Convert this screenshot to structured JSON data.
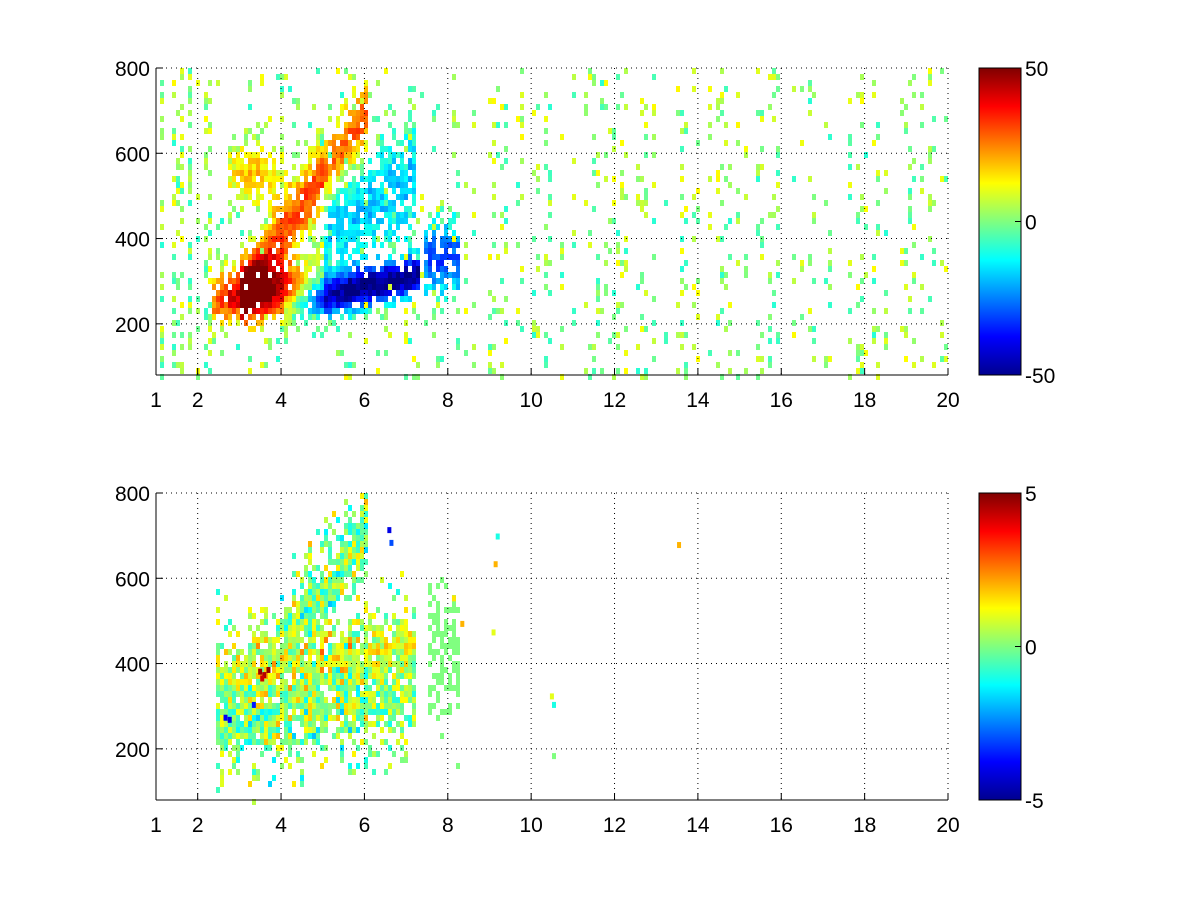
{
  "chart_data": [
    {
      "type": "heatmap",
      "title": "",
      "xlabel": "",
      "ylabel": "",
      "xlim": [
        1,
        20
      ],
      "ylim": [
        80,
        800
      ],
      "x_ticks": [
        1,
        2,
        4,
        6,
        8,
        10,
        12,
        14,
        16,
        18,
        20
      ],
      "x_tick_labels": [
        "1",
        "2",
        "4",
        "6",
        "8",
        "10",
        "12",
        "14",
        "16",
        "18",
        "20"
      ],
      "y_ticks": [
        200,
        400,
        600,
        800
      ],
      "y_tick_labels": [
        "200",
        "400",
        "600",
        "800"
      ],
      "grid": true,
      "colormap": "jet",
      "colorbar": {
        "min": -50,
        "max": 50,
        "ticks": [
          50,
          0,
          -50
        ],
        "tick_labels": [
          "50",
          "0",
          "-50"
        ]
      },
      "features": [
        {
          "name": "positive band",
          "x_range": [
            2.4,
            5.0
          ],
          "y_center": 275,
          "value": 45
        },
        {
          "name": "negative band",
          "x_range": [
            4.2,
            7.2
          ],
          "y_center": 290,
          "value": -45
        },
        {
          "name": "upper positive band",
          "x_range": [
            2.8,
            5.8
          ],
          "y_center": 600,
          "value": 25
        },
        {
          "name": "sparse scatter",
          "x_range": [
            8,
            20
          ],
          "value": 0
        }
      ]
    },
    {
      "type": "heatmap",
      "title": "",
      "xlabel": "",
      "ylabel": "",
      "xlim": [
        1,
        20
      ],
      "ylim": [
        80,
        800
      ],
      "x_ticks": [
        1,
        2,
        4,
        6,
        8,
        10,
        12,
        14,
        16,
        18,
        20
      ],
      "x_tick_labels": [
        "1",
        "2",
        "4",
        "6",
        "8",
        "10",
        "12",
        "14",
        "16",
        "18",
        "20"
      ],
      "y_ticks": [
        200,
        400,
        600,
        800
      ],
      "y_tick_labels": [
        "200",
        "400",
        "600",
        "800"
      ],
      "grid": true,
      "colormap": "jet",
      "colorbar": {
        "min": -5,
        "max": 5,
        "ticks": [
          5,
          0,
          -5
        ],
        "tick_labels": [
          "5",
          "0",
          "-5"
        ]
      },
      "features": [
        {
          "name": "main cloud",
          "x_range": [
            2.4,
            7.2
          ],
          "y_center": 300,
          "value": 0
        },
        {
          "name": "red spots",
          "x": 3.5,
          "y": 385,
          "value": 4.5
        },
        {
          "name": "blue spots",
          "x": 2.7,
          "y": 275,
          "value": -4
        },
        {
          "name": "isolated points",
          "x_range": [
            8,
            13.5
          ],
          "value": 1
        }
      ]
    }
  ]
}
